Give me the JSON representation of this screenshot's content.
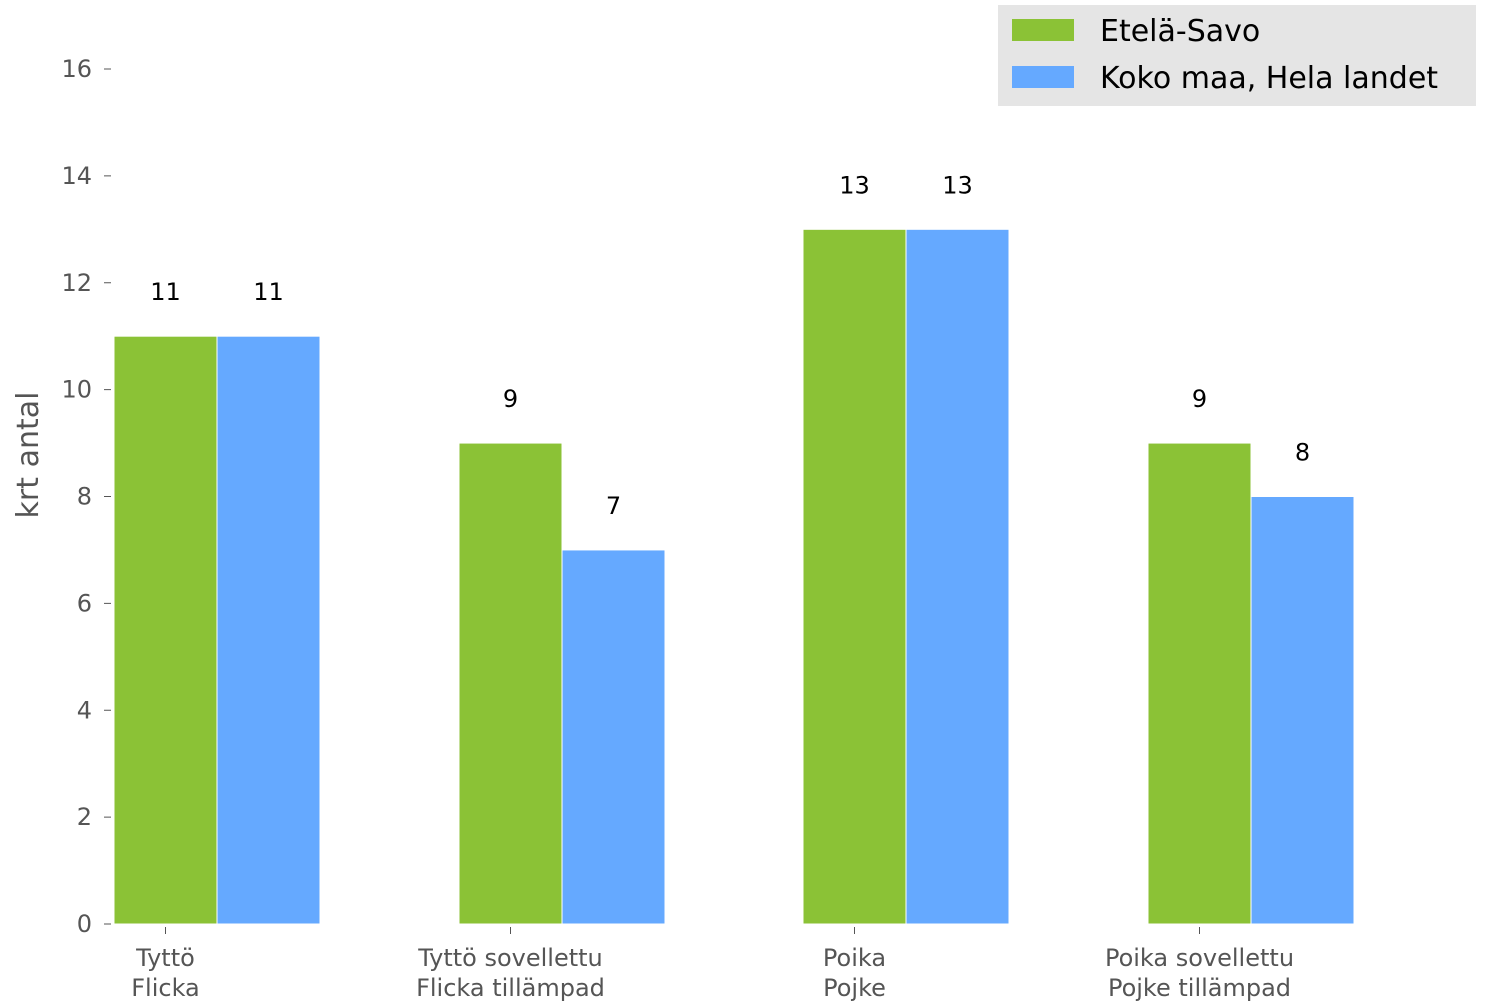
{
  "chart_data": {
    "type": "bar",
    "categories": [
      [
        "Tyttö",
        "Flicka"
      ],
      [
        "Tyttö sovellettu",
        "Flicka tillämpad"
      ],
      [
        "Poika",
        "Pojke"
      ],
      [
        "Poika sovellettu",
        "Pojke tillämpad"
      ]
    ],
    "series": [
      {
        "name": "Etelä-Savo",
        "values": [
          11,
          9,
          13,
          9
        ],
        "color": "#8bc236"
      },
      {
        "name": "Koko maa, Hela landet",
        "values": [
          11,
          7,
          13,
          8
        ],
        "color": "#65a9ff"
      }
    ],
    "ylabel": "krt antal",
    "xlabel": "",
    "title": "",
    "ylim": [
      0,
      16
    ],
    "yticks": [
      0,
      2,
      4,
      6,
      8,
      10,
      12,
      14,
      16
    ],
    "grid": false,
    "legend_position": "top-right",
    "legend_background": "#e5e5e5"
  }
}
